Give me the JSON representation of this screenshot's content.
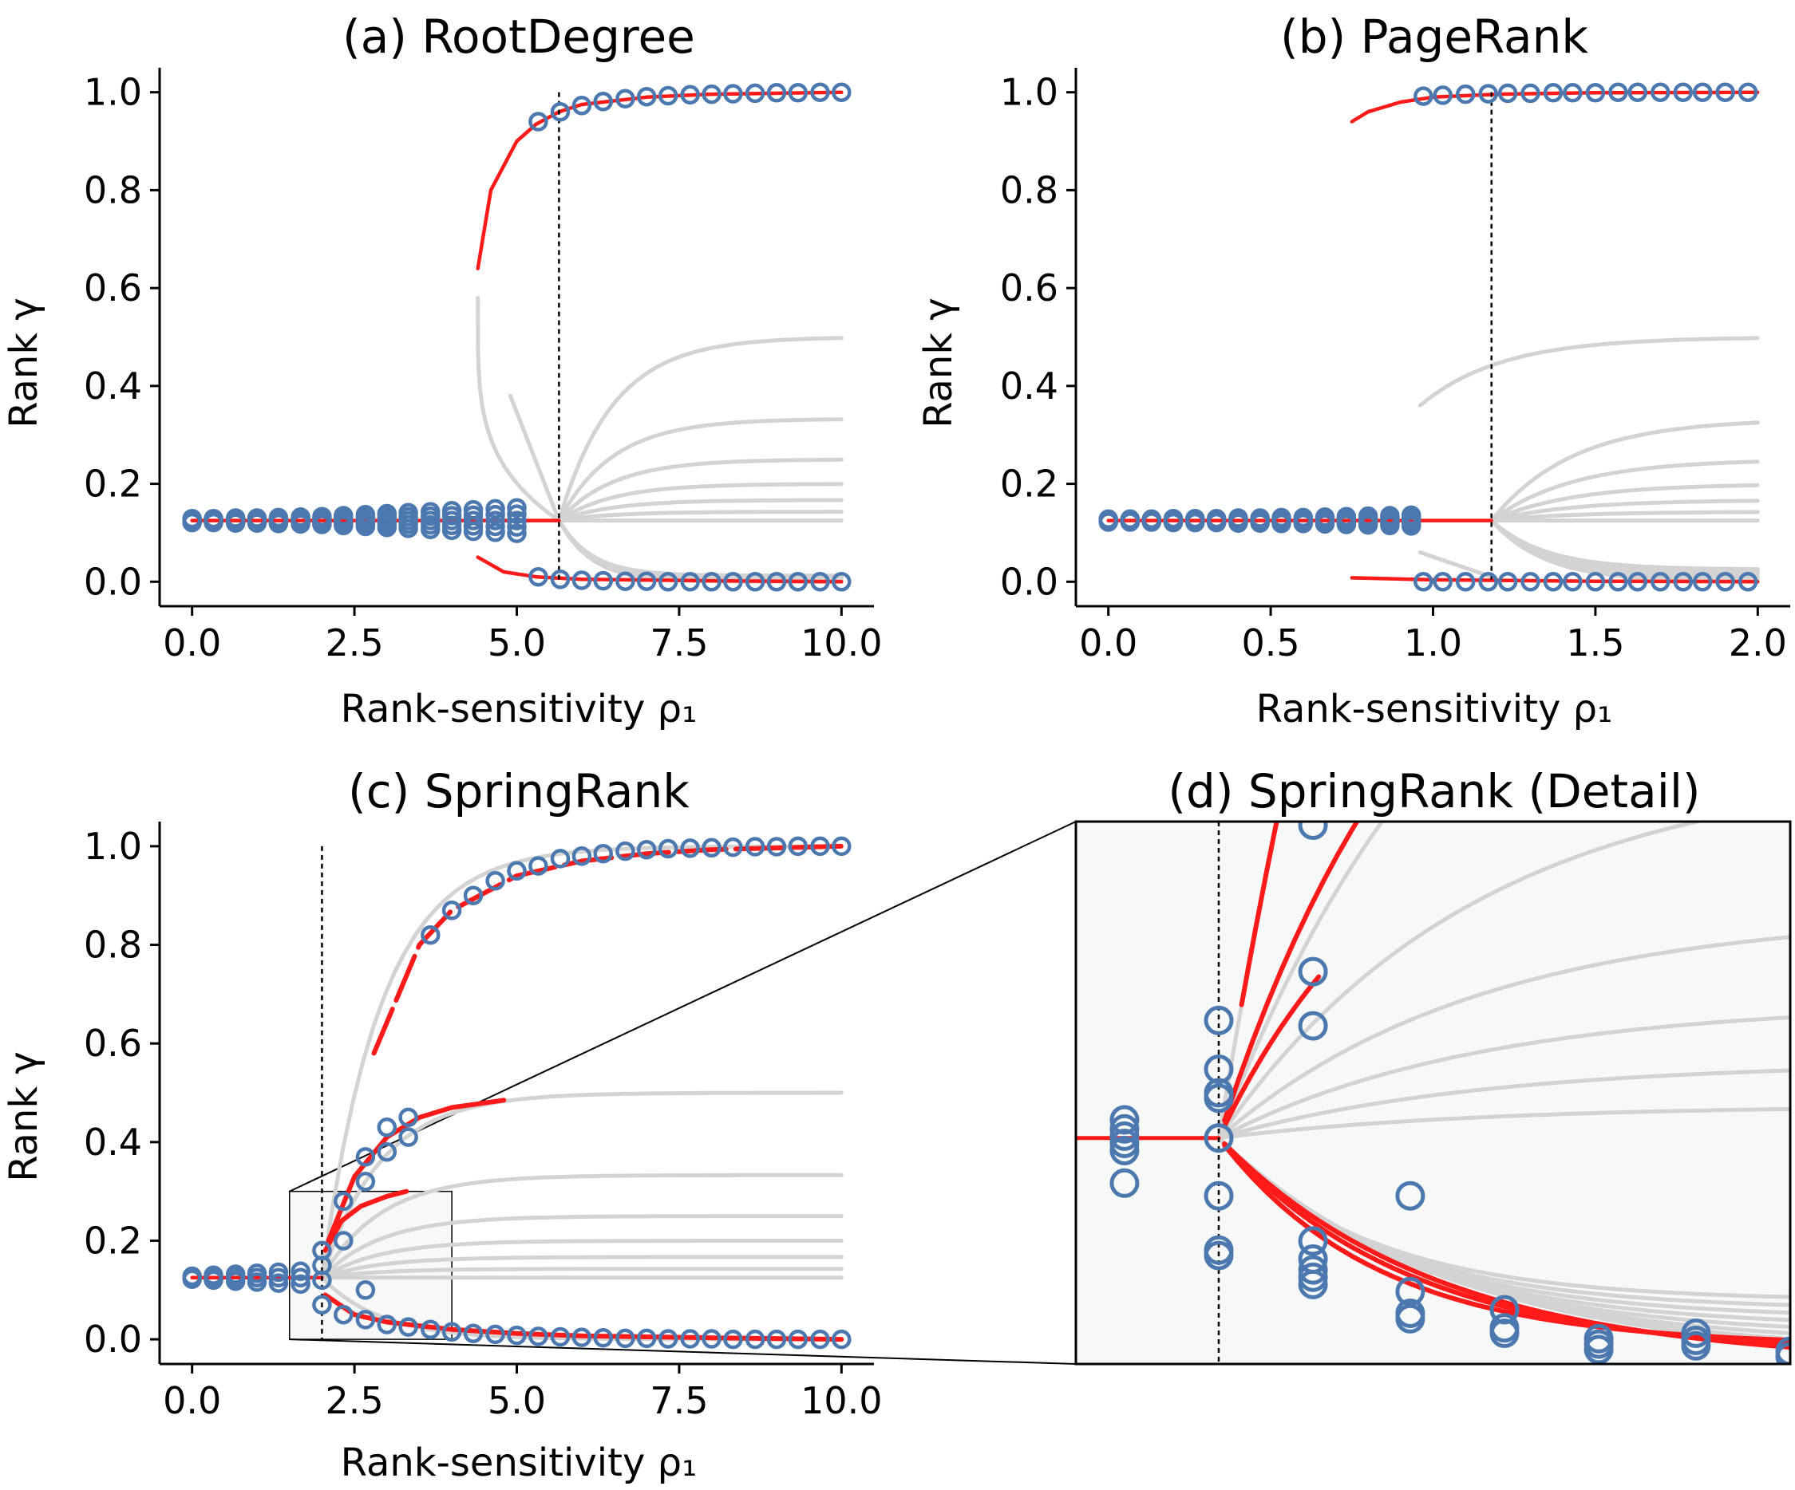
{
  "chart_data": [
    {
      "type": "line",
      "title": "(a) RootDegree",
      "xlabel": "Rank-sensitivity ρ₁",
      "ylabel": "Rank γ",
      "xlim": [
        -0.5,
        10.5
      ],
      "ylim": [
        -0.05,
        1.05
      ],
      "xticks": [
        "0.0",
        "2.5",
        "5.0",
        "7.5",
        "10.0"
      ],
      "yticks": [
        "0.0",
        "0.2",
        "0.4",
        "0.6",
        "0.8",
        "1.0"
      ],
      "critical_value": 5.65,
      "gray_limits": [
        0.5,
        0.333,
        0.25,
        0.2,
        0.167,
        0.143,
        0.125
      ],
      "series": [
        {
          "name": "baseline",
          "x": [
            0,
            5.65
          ],
          "y": [
            0.125,
            0.125
          ]
        },
        {
          "name": "upper-branch",
          "x": [
            4.4,
            4.6,
            5.0,
            5.3,
            5.65,
            6.0,
            7.0,
            8.0,
            10.0
          ],
          "y": [
            0.64,
            0.8,
            0.9,
            0.935,
            0.96,
            0.975,
            0.99,
            0.996,
            1.0
          ]
        },
        {
          "name": "lower-branch",
          "x": [
            4.4,
            4.8,
            5.3,
            6.0,
            8.0,
            10.0
          ],
          "y": [
            0.05,
            0.02,
            0.01,
            0.005,
            0.002,
            0.0
          ]
        },
        {
          "name": "simulation-upper",
          "x": [
            5.33,
            5.67,
            6.0,
            6.33,
            6.67,
            7.0,
            7.33,
            7.67,
            8.0,
            8.33,
            8.67,
            9.0,
            9.33,
            9.67,
            10.0
          ],
          "y": [
            0.94,
            0.96,
            0.973,
            0.981,
            0.987,
            0.991,
            0.993,
            0.995,
            0.996,
            0.997,
            0.998,
            0.999,
            0.999,
            1.0,
            1.0
          ]
        },
        {
          "name": "simulation-lower",
          "x": [
            5.33,
            5.67,
            6.0,
            6.33,
            6.67,
            7.0,
            7.33,
            7.67,
            8.0,
            8.33,
            8.67,
            9.0,
            9.33,
            9.67,
            10.0
          ],
          "y": [
            0.01,
            0.005,
            0.003,
            0.002,
            0.001,
            0.001,
            0.0,
            0.0,
            0.0,
            0.0,
            0.0,
            0.0,
            0.0,
            0.0,
            0.0
          ]
        },
        {
          "name": "simulation-mixed",
          "x": [
            0,
            0.33,
            0.67,
            1.0,
            1.33,
            1.67,
            2.0,
            2.33,
            2.67,
            3.0,
            3.33,
            3.67,
            4.0,
            4.33,
            4.67,
            5.0
          ],
          "spread": [
            0.004,
            0.004,
            0.005,
            0.005,
            0.006,
            0.007,
            0.008,
            0.01,
            0.012,
            0.014,
            0.016,
            0.018,
            0.02,
            0.022,
            0.024,
            0.026
          ]
        }
      ]
    },
    {
      "type": "line",
      "title": "(b) PageRank",
      "xlabel": "Rank-sensitivity ρ₁",
      "ylabel": "Rank γ",
      "xlim": [
        -0.1,
        2.1
      ],
      "ylim": [
        -0.05,
        1.05
      ],
      "xticks": [
        "0.0",
        "0.5",
        "1.0",
        "1.5",
        "2.0"
      ],
      "yticks": [
        "0.0",
        "0.2",
        "0.4",
        "0.6",
        "0.8",
        "1.0"
      ],
      "critical_value": 1.18,
      "gray_limits": [
        0.5,
        0.333,
        0.25,
        0.2,
        0.167,
        0.143,
        0.125
      ],
      "series": [
        {
          "name": "baseline",
          "x": [
            0,
            1.18
          ],
          "y": [
            0.125,
            0.125
          ]
        },
        {
          "name": "upper-branch",
          "x": [
            0.75,
            0.8,
            0.9,
            1.0,
            1.2,
            1.5,
            2.0
          ],
          "y": [
            0.94,
            0.96,
            0.98,
            0.99,
            0.996,
            0.999,
            1.0
          ]
        },
        {
          "name": "lower-branch",
          "x": [
            0.75,
            1.0,
            1.5,
            2.0
          ],
          "y": [
            0.008,
            0.004,
            0.001,
            0.0
          ]
        },
        {
          "name": "simulation-upper",
          "x": [
            0.97,
            1.03,
            1.1,
            1.17,
            1.23,
            1.3,
            1.37,
            1.43,
            1.5,
            1.57,
            1.63,
            1.7,
            1.77,
            1.83,
            1.9,
            1.97
          ],
          "y": [
            0.992,
            0.994,
            0.996,
            0.997,
            0.998,
            0.998,
            0.999,
            0.999,
            0.999,
            1.0,
            1.0,
            1.0,
            1.0,
            1.0,
            1.0,
            1.0
          ]
        },
        {
          "name": "simulation-lower",
          "x": [
            0.97,
            1.03,
            1.1,
            1.17,
            1.23,
            1.3,
            1.37,
            1.43,
            1.5,
            1.57,
            1.63,
            1.7,
            1.77,
            1.83,
            1.9,
            1.97
          ],
          "y": [
            0.0,
            0.0,
            0.0,
            0.0,
            0.0,
            0.0,
            0.0,
            0.0,
            0.0,
            0.0,
            0.0,
            0.0,
            0.0,
            0.0,
            0.0,
            0.0
          ]
        },
        {
          "name": "simulation-mixed",
          "x": [
            0,
            0.067,
            0.133,
            0.2,
            0.267,
            0.333,
            0.4,
            0.467,
            0.533,
            0.6,
            0.667,
            0.733,
            0.8,
            0.867,
            0.933
          ],
          "spread": [
            0.003,
            0.003,
            0.003,
            0.004,
            0.004,
            0.004,
            0.005,
            0.005,
            0.006,
            0.006,
            0.007,
            0.008,
            0.009,
            0.01,
            0.011
          ]
        }
      ]
    },
    {
      "type": "line",
      "title": "(c) SpringRank",
      "xlabel": "Rank-sensitivity ρ₁",
      "ylabel": "Rank γ",
      "xlim": [
        -0.5,
        10.5
      ],
      "ylim": [
        -0.05,
        1.05
      ],
      "xticks": [
        "0.0",
        "2.5",
        "5.0",
        "7.5",
        "10.0"
      ],
      "yticks": [
        "0.0",
        "0.2",
        "0.4",
        "0.6",
        "0.8",
        "1.0"
      ],
      "critical_value": 2.0,
      "inset_region": {
        "x": [
          1.5,
          4.0
        ],
        "y": [
          0.0,
          0.3
        ]
      },
      "gray_limits": [
        1.0,
        0.5,
        0.333,
        0.25,
        0.2,
        0.167,
        0.143,
        0.125,
        0.0
      ],
      "series": [
        {
          "name": "baseline",
          "x": [
            0,
            2.0
          ],
          "y": [
            0.125,
            0.125
          ]
        },
        {
          "name": "branch-top",
          "x": [
            2.8,
            3.5,
            4.0,
            5.0,
            6.0,
            7.0,
            8.0,
            10.0
          ],
          "y": [
            0.58,
            0.8,
            0.87,
            0.94,
            0.97,
            0.985,
            0.993,
            1.0
          ]
        },
        {
          "name": "branch-mid",
          "x": [
            2.1,
            2.5,
            3.0,
            3.5,
            4.0,
            4.8
          ],
          "y": [
            0.2,
            0.33,
            0.41,
            0.45,
            0.47,
            0.485
          ]
        },
        {
          "name": "branch-low",
          "x": [
            2.05,
            2.3,
            2.6,
            3.0,
            3.3
          ],
          "y": [
            0.18,
            0.24,
            0.27,
            0.29,
            0.3
          ]
        },
        {
          "name": "branch-bottom",
          "x": [
            2.05,
            2.5,
            3.0,
            4.0,
            5.0,
            6.0,
            8.0,
            10.0
          ],
          "y": [
            0.09,
            0.05,
            0.035,
            0.02,
            0.012,
            0.007,
            0.003,
            0.0
          ]
        },
        {
          "name": "simulation",
          "x": [
            2.0,
            2.33,
            2.67,
            3.0,
            3.33,
            3.67,
            4.0,
            4.33,
            4.67,
            5.0,
            5.33,
            5.67,
            6.0,
            6.33,
            6.67,
            7.0,
            7.33,
            7.67,
            8.0,
            8.33,
            8.67,
            9.0,
            9.33,
            9.67,
            10.0
          ],
          "upper": [
            0.18,
            0.28,
            0.37,
            0.43,
            0.45,
            0.82,
            0.87,
            0.9,
            0.93,
            0.95,
            0.96,
            0.975,
            0.98,
            0.985,
            0.99,
            0.993,
            0.995,
            0.996,
            0.997,
            0.998,
            0.999,
            0.999,
            1.0,
            1.0,
            1.0
          ],
          "lower": [
            0.07,
            0.05,
            0.04,
            0.03,
            0.025,
            0.02,
            0.015,
            0.012,
            0.01,
            0.008,
            0.006,
            0.005,
            0.004,
            0.003,
            0.002,
            0.002,
            0.001,
            0.001,
            0.001,
            0.0,
            0.0,
            0.0,
            0.0,
            0.0,
            0.0
          ]
        }
      ]
    },
    {
      "type": "line",
      "title": "(d) SpringRank (Detail)",
      "xlim": [
        1.5,
        4.0
      ],
      "ylim": [
        0.0,
        0.3
      ],
      "critical_value": 2.0,
      "gray_limits": [
        0.333,
        0.25,
        0.2,
        0.167,
        0.143,
        0.125,
        0.0
      ],
      "series": [
        {
          "name": "baseline",
          "x": [
            1.5,
            2.0
          ],
          "y": [
            0.125,
            0.125
          ]
        }
      ]
    }
  ]
}
